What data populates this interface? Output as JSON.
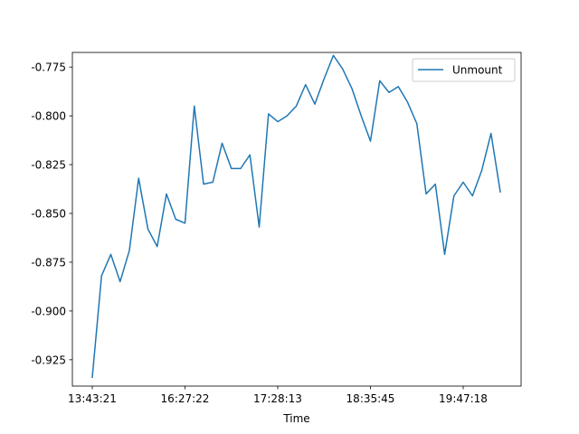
{
  "chart_data": {
    "type": "line",
    "title": "",
    "xlabel": "Time",
    "ylabel": "",
    "x_ticks": [
      "13:43:21",
      "16:27:22",
      "17:28:13",
      "18:35:45",
      "19:47:18"
    ],
    "y_ticks": [
      "-0.775",
      "-0.800",
      "-0.825",
      "-0.850",
      "-0.875",
      "-0.900",
      "-0.925"
    ],
    "ylim": [
      -0.9385,
      -0.7675
    ],
    "grid": false,
    "legend_position": "top-right",
    "series": [
      {
        "name": "Unmount",
        "color": "#1f77b4",
        "values": [
          -0.934,
          -0.882,
          -0.871,
          -0.885,
          -0.869,
          -0.832,
          -0.858,
          -0.867,
          -0.84,
          -0.853,
          -0.855,
          -0.795,
          -0.835,
          -0.834,
          -0.814,
          -0.827,
          -0.827,
          -0.82,
          -0.857,
          -0.799,
          -0.803,
          -0.8,
          -0.795,
          -0.784,
          -0.794,
          -0.781,
          -0.769,
          -0.776,
          -0.786,
          -0.8,
          -0.813,
          -0.782,
          -0.788,
          -0.785,
          -0.793,
          -0.804,
          -0.84,
          -0.835,
          -0.871,
          -0.841,
          -0.834,
          -0.841,
          -0.828,
          -0.809,
          -0.839
        ]
      }
    ]
  }
}
